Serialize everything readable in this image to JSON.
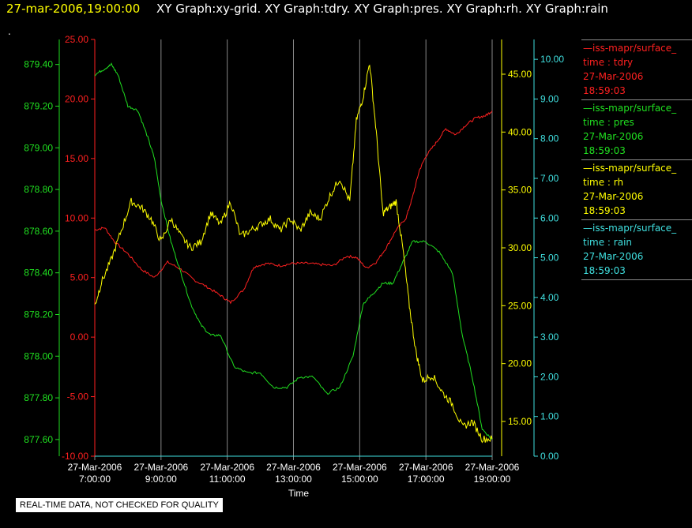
{
  "header": {
    "time": "27-mar-2006,19:00:00",
    "graphs": "XY Graph:xy-grid.  XY Graph:tdry.  XY Graph:pres.  XY Graph:rh.  XY Graph:rain",
    "dot": "."
  },
  "disclaimer": "REAL-TIME DATA, NOT CHECKED FOR QUALITY",
  "legend": [
    {
      "series": "iss-mapr/surface_",
      "var": "time : tdry",
      "date": "27-Mar-2006",
      "time": "18:59:03",
      "color": "#ff2020"
    },
    {
      "series": "iss-mapr/surface_",
      "var": "time : pres",
      "date": "27-Mar-2006",
      "time": "18:59:03",
      "color": "#20e020"
    },
    {
      "series": "iss-mapr/surface_",
      "var": "time : rh",
      "date": "27-Mar-2006",
      "time": "18:59:03",
      "color": "#ffff00"
    },
    {
      "series": "iss-mapr/surface_",
      "var": "time : rain",
      "date": "27-Mar-2006",
      "time": "18:59:03",
      "color": "#40e0e0"
    }
  ],
  "chart_data": {
    "type": "line",
    "xlabel": "Time",
    "x_ticks": [
      {
        "date": "27-Mar-2006",
        "time": "7:00:00",
        "h": 7
      },
      {
        "date": "27-Mar-2006",
        "time": "9:00:00",
        "h": 9
      },
      {
        "date": "27-Mar-2006",
        "time": "11:00:00",
        "h": 11
      },
      {
        "date": "27-Mar-2006",
        "time": "13:00:00",
        "h": 13
      },
      {
        "date": "27-Mar-2006",
        "time": "15:00:00",
        "h": 15
      },
      {
        "date": "27-Mar-2006",
        "time": "17:00:00",
        "h": 17
      },
      {
        "date": "27-Mar-2006",
        "time": "19:00:00",
        "h": 19
      }
    ],
    "xlim": [
      7,
      19
    ],
    "grid": "vertical",
    "legend_position": "right",
    "axes": {
      "tdry": {
        "ylim": [
          -10,
          25
        ],
        "ticks": [
          "-10.00",
          "-5.00",
          "0.00",
          "5.00",
          "10.00",
          "15.00",
          "20.00",
          "25.00"
        ],
        "color": "#ff2020"
      },
      "pres": {
        "ylim": [
          877.52,
          879.52
        ],
        "ticks": [
          "877.60",
          "877.80",
          "878.00",
          "878.20",
          "878.40",
          "878.60",
          "878.80",
          "879.00",
          "879.20",
          "879.40"
        ],
        "color": "#20e020"
      },
      "rh": {
        "ylim": [
          12,
          48
        ],
        "ticks": [
          "15.00",
          "20.00",
          "25.00",
          "30.00",
          "35.00",
          "40.00",
          "45.00"
        ],
        "color": "#ffff00"
      },
      "rain": {
        "ylim": [
          0,
          10.5
        ],
        "ticks": [
          "0.00",
          "1.00",
          "2.00",
          "3.00",
          "4.00",
          "5.00",
          "6.00",
          "7.00",
          "8.00",
          "9.00",
          "10.00"
        ],
        "color": "#40e0e0"
      }
    },
    "series": [
      {
        "name": "tdry",
        "axis": "tdry",
        "color": "#ff2020",
        "x": [
          7.0,
          7.3,
          7.6,
          8.0,
          8.4,
          8.8,
          9.2,
          9.6,
          10.0,
          10.4,
          10.8,
          11.1,
          11.5,
          11.8,
          12.2,
          12.6,
          13.0,
          13.4,
          13.8,
          14.2,
          14.6,
          14.9,
          15.2,
          15.5,
          15.8,
          16.1,
          16.4,
          16.6,
          16.8,
          17.0,
          17.3,
          17.6,
          17.9,
          18.2,
          18.5,
          18.8,
          19.0
        ],
        "y": [
          9.0,
          9.2,
          8.0,
          7.0,
          5.7,
          5.0,
          6.3,
          5.7,
          4.8,
          4.2,
          3.5,
          2.9,
          4.0,
          5.9,
          6.2,
          6.0,
          6.2,
          6.2,
          6.1,
          6.0,
          6.8,
          6.7,
          5.8,
          6.3,
          7.5,
          9.0,
          10.0,
          11.8,
          14.0,
          15.2,
          16.3,
          17.5,
          17.0,
          17.8,
          18.4,
          18.6,
          19.0
        ]
      },
      {
        "name": "pres",
        "axis": "pres",
        "color": "#20e020",
        "x": [
          7.0,
          7.3,
          7.5,
          7.7,
          8.0,
          8.3,
          8.6,
          8.8,
          9.0,
          9.3,
          9.6,
          9.9,
          10.2,
          10.5,
          10.8,
          11.2,
          11.6,
          12.0,
          12.4,
          12.8,
          13.2,
          13.6,
          14.0,
          14.4,
          14.8,
          15.1,
          15.4,
          15.7,
          16.0,
          16.3,
          16.6,
          17.0,
          17.4,
          17.8,
          18.1,
          18.4,
          18.7,
          19.0
        ],
        "y": [
          879.35,
          879.38,
          879.4,
          879.35,
          879.2,
          879.18,
          879.05,
          878.95,
          878.75,
          878.55,
          878.4,
          878.25,
          878.15,
          878.1,
          878.1,
          877.95,
          877.92,
          877.92,
          877.85,
          877.85,
          877.9,
          877.9,
          877.82,
          877.85,
          878.0,
          878.25,
          878.3,
          878.35,
          878.35,
          878.45,
          878.55,
          878.55,
          878.5,
          878.4,
          878.1,
          877.9,
          877.65,
          877.6
        ]
      },
      {
        "name": "rh",
        "axis": "rh",
        "color": "#ffff00",
        "x": [
          7.0,
          7.2,
          7.5,
          7.8,
          8.1,
          8.4,
          8.7,
          9.0,
          9.3,
          9.6,
          9.9,
          10.2,
          10.5,
          10.8,
          11.1,
          11.4,
          11.7,
          12.0,
          12.3,
          12.6,
          12.9,
          13.2,
          13.5,
          13.8,
          14.1,
          14.4,
          14.7,
          14.9,
          15.1,
          15.3,
          15.5,
          15.7,
          15.9,
          16.1,
          16.3,
          16.5,
          16.7,
          16.9,
          17.2,
          17.5,
          17.8,
          18.1,
          18.4,
          18.7,
          19.0
        ],
        "y": [
          25.0,
          27.0,
          29.0,
          31.5,
          34.0,
          33.5,
          32.5,
          30.5,
          32.5,
          31.0,
          30.0,
          30.5,
          33.0,
          32.0,
          34.0,
          31.0,
          31.5,
          32.0,
          32.5,
          31.5,
          32.5,
          31.5,
          33.0,
          32.5,
          34.5,
          36.0,
          34.0,
          41.0,
          43.0,
          46.0,
          40.0,
          33.0,
          33.5,
          34.0,
          30.0,
          25.0,
          21.0,
          18.5,
          19.0,
          17.5,
          16.5,
          14.5,
          15.0,
          13.5,
          13.5
        ]
      },
      {
        "name": "rain",
        "axis": "rain",
        "color": "#40e0e0",
        "x": [
          7.0,
          19.0
        ],
        "y": [
          0.0,
          0.0
        ]
      }
    ]
  }
}
